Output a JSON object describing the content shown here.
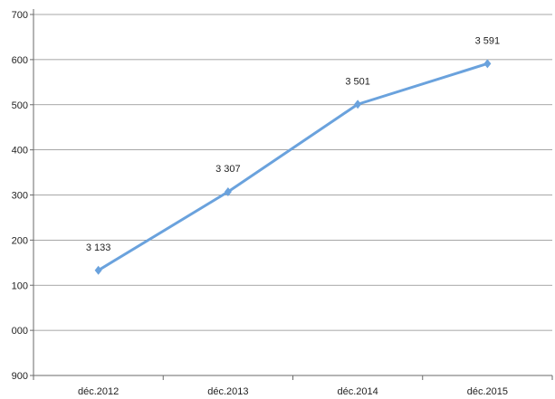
{
  "chart_data": {
    "type": "line",
    "title": "",
    "xlabel": "",
    "ylabel": "",
    "categories": [
      "déc.2012",
      "déc.2013",
      "déc.2014",
      "déc.2015"
    ],
    "y_tick_labels": [
      "900",
      "000",
      "100",
      "200",
      "300",
      "400",
      "500",
      "600",
      "700"
    ],
    "ylim": [
      2900,
      3700
    ],
    "grid": true,
    "legend": "none",
    "series": [
      {
        "values": [
          3133,
          3307,
          3501,
          3591
        ],
        "labels": [
          "3 133",
          "3 307",
          "3 501",
          "3 591"
        ],
        "color": "#6aa2dd",
        "marker": "diamond"
      }
    ]
  }
}
